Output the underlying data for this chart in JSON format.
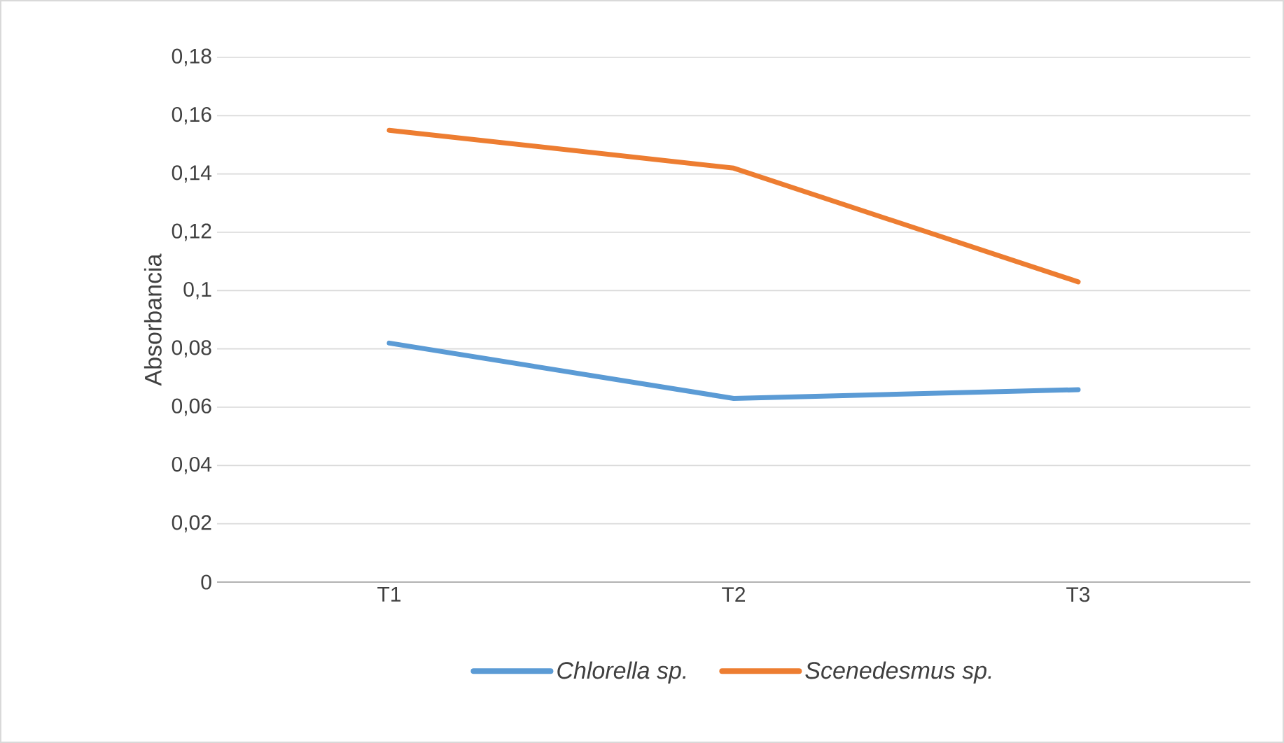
{
  "chart_data": {
    "type": "line",
    "ylabel": "Absorbancia",
    "categories": [
      "T1",
      "T2",
      "T3"
    ],
    "series": [
      {
        "name": "Chlorella sp.",
        "color": "#5b9bd5",
        "values": [
          0.082,
          0.063,
          0.066
        ]
      },
      {
        "name": "Scenedesmus sp.",
        "color": "#ed7d31",
        "values": [
          0.155,
          0.142,
          0.103
        ]
      }
    ],
    "ylim": [
      0,
      0.18
    ],
    "yticks": [
      {
        "value": 0,
        "label": "0"
      },
      {
        "value": 0.02,
        "label": "0,02"
      },
      {
        "value": 0.04,
        "label": "0,04"
      },
      {
        "value": 0.06,
        "label": "0,06"
      },
      {
        "value": 0.08,
        "label": "0,08"
      },
      {
        "value": 0.1,
        "label": "0,1"
      },
      {
        "value": 0.12,
        "label": "0,12"
      },
      {
        "value": 0.14,
        "label": "0,14"
      },
      {
        "value": 0.16,
        "label": "0,16"
      },
      {
        "value": 0.18,
        "label": "0,18"
      }
    ],
    "grid": "y",
    "legend": "bottom",
    "marker": "none",
    "line_style": "solid"
  }
}
